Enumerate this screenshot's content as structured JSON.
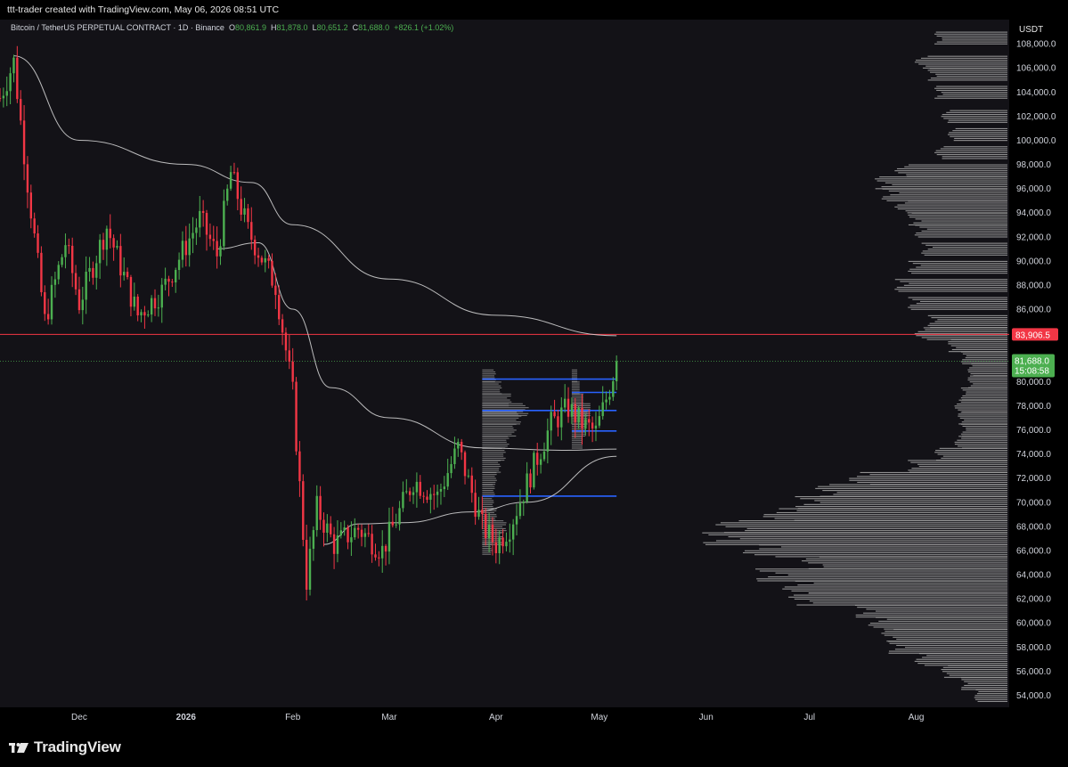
{
  "header": {
    "attribution": "ttt-trader created with TradingView.com, May 06, 2026 08:51 UTC"
  },
  "legend": {
    "symbol": "Bitcoin / TetherUS PERPETUAL CONTRACT · 1D · Binance",
    "open_label": "O",
    "open": "80,861.9",
    "high_label": "H",
    "high": "81,878.0",
    "low_label": "L",
    "low": "80,651.2",
    "close_label": "C",
    "close": "81,688.0",
    "change": "+826.1 (+1.02%)"
  },
  "footer": {
    "brand": "TradingView"
  },
  "colors": {
    "background": "#000000",
    "plot_bg": "#131217",
    "up": "#4caf50",
    "down": "#f23645",
    "resistance": "#f23645",
    "level_lines": "#2962ff",
    "ma": "#d9d9d9",
    "profile": "#9e9e9e"
  },
  "chart_data": {
    "type": "candlestick",
    "currency": "USDT",
    "y_range": [
      53000,
      110000
    ],
    "y_ticks": [
      "54,000.0",
      "56,000.0",
      "58,000.0",
      "60,000.0",
      "62,000.0",
      "64,000.0",
      "66,000.0",
      "68,000.0",
      "70,000.0",
      "72,000.0",
      "74,000.0",
      "76,000.0",
      "78,000.0",
      "80,000.0",
      "82,000.0",
      "84,000.0",
      "86,000.0",
      "88,000.0",
      "90,000.0",
      "92,000.0",
      "94,000.0",
      "96,000.0",
      "98,000.0",
      "100,000.0",
      "102,000.0",
      "104,000.0",
      "106,000.0",
      "108,000.0"
    ],
    "x_range": [
      "2025-11-08",
      "2026-08-28"
    ],
    "x_labels": [
      {
        "date": "2025-12-01",
        "label": "Dec",
        "bold": false
      },
      {
        "date": "2026-01-01",
        "label": "2026",
        "bold": true
      },
      {
        "date": "2026-02-01",
        "label": "Feb",
        "bold": false
      },
      {
        "date": "2026-03-01",
        "label": "Mar",
        "bold": false
      },
      {
        "date": "2026-04-01",
        "label": "Apr",
        "bold": false
      },
      {
        "date": "2026-05-01",
        "label": "May",
        "bold": false
      },
      {
        "date": "2026-06-01",
        "label": "Jun",
        "bold": false
      },
      {
        "date": "2026-07-01",
        "label": "Jul",
        "bold": false
      },
      {
        "date": "2026-08-01",
        "label": "Aug",
        "bold": false
      }
    ],
    "candle_anchors": [
      {
        "date": "2025-11-08",
        "price": 103500
      },
      {
        "date": "2025-11-12",
        "price": 106500
      },
      {
        "date": "2025-11-16",
        "price": 96500
      },
      {
        "date": "2025-11-21",
        "price": 85000
      },
      {
        "date": "2025-11-27",
        "price": 91500
      },
      {
        "date": "2025-12-01",
        "price": 86500
      },
      {
        "date": "2025-12-09",
        "price": 92800
      },
      {
        "date": "2025-12-18",
        "price": 85500
      },
      {
        "date": "2025-12-25",
        "price": 87500
      },
      {
        "date": "2026-01-05",
        "price": 93500
      },
      {
        "date": "2026-01-10",
        "price": 90500
      },
      {
        "date": "2026-01-14",
        "price": 97300
      },
      {
        "date": "2026-01-19",
        "price": 92500
      },
      {
        "date": "2026-01-27",
        "price": 88000
      },
      {
        "date": "2026-02-01",
        "price": 79000
      },
      {
        "date": "2026-02-05",
        "price": 63500
      },
      {
        "date": "2026-02-08",
        "price": 69500
      },
      {
        "date": "2026-02-13",
        "price": 66500
      },
      {
        "date": "2026-02-20",
        "price": 67800
      },
      {
        "date": "2026-02-27",
        "price": 66000
      },
      {
        "date": "2026-03-08",
        "price": 71800
      },
      {
        "date": "2026-03-15",
        "price": 70500
      },
      {
        "date": "2026-03-21",
        "price": 74500
      },
      {
        "date": "2026-03-28",
        "price": 68000
      },
      {
        "date": "2026-04-01",
        "price": 66500
      },
      {
        "date": "2026-04-05",
        "price": 68000
      },
      {
        "date": "2026-04-12",
        "price": 73000
      },
      {
        "date": "2026-04-17",
        "price": 76500
      },
      {
        "date": "2026-04-22",
        "price": 77800
      },
      {
        "date": "2026-04-26",
        "price": 76500
      },
      {
        "date": "2026-04-30",
        "price": 75800
      },
      {
        "date": "2026-05-04",
        "price": 79500
      },
      {
        "date": "2026-05-06",
        "price": 81688
      }
    ],
    "moving_averages": [
      {
        "points": [
          [
            "2025-11-12",
            107000
          ],
          [
            "2025-12-01",
            100000
          ],
          [
            "2026-01-01",
            98000
          ],
          [
            "2026-01-20",
            96500
          ],
          [
            "2026-02-01",
            93000
          ],
          [
            "2026-03-01",
            88500
          ],
          [
            "2026-04-01",
            85500
          ],
          [
            "2026-05-06",
            83800
          ]
        ]
      },
      {
        "points": [
          [
            "2026-01-10",
            91000
          ],
          [
            "2026-01-22",
            91500
          ],
          [
            "2026-02-01",
            86000
          ],
          [
            "2026-02-12",
            79500
          ],
          [
            "2026-03-01",
            77000
          ],
          [
            "2026-03-28",
            74500
          ],
          [
            "2026-04-20",
            74300
          ],
          [
            "2026-05-06",
            74400
          ]
        ]
      },
      {
        "points": [
          [
            "2026-02-10",
            66500
          ],
          [
            "2026-02-20",
            68200
          ],
          [
            "2026-03-05",
            68300
          ],
          [
            "2026-03-25",
            69200
          ],
          [
            "2026-04-10",
            70000
          ],
          [
            "2026-05-06",
            73800
          ]
        ]
      }
    ],
    "horizontal_levels": [
      {
        "price": 83906.5,
        "label": "83,906.5",
        "color": "#f23645",
        "full_width": true
      },
      {
        "price": 80200,
        "from": "2026-03-28",
        "to": "2026-05-06",
        "color": "#2962ff"
      },
      {
        "price": 79100,
        "from": "2026-04-23",
        "to": "2026-05-06",
        "color": "#2962ff"
      },
      {
        "price": 77600,
        "from": "2026-03-28",
        "to": "2026-05-06",
        "color": "#2962ff"
      },
      {
        "price": 75900,
        "from": "2026-04-23",
        "to": "2026-05-06",
        "color": "#2962ff"
      },
      {
        "price": 70500,
        "from": "2026-03-28",
        "to": "2026-05-06",
        "color": "#2962ff"
      }
    ],
    "last_price": {
      "value": "81,688.0",
      "countdown": "15:08:58",
      "price": 81688
    },
    "volume_profile_right": [
      [
        108500,
        0.22
      ],
      [
        106500,
        0.28
      ],
      [
        105500,
        0.24
      ],
      [
        104000,
        0.22
      ],
      [
        102000,
        0.2
      ],
      [
        100500,
        0.18
      ],
      [
        99000,
        0.22
      ],
      [
        97500,
        0.34
      ],
      [
        96500,
        0.4
      ],
      [
        95500,
        0.38
      ],
      [
        94500,
        0.34
      ],
      [
        93500,
        0.3
      ],
      [
        92500,
        0.28
      ],
      [
        91000,
        0.26
      ],
      [
        89500,
        0.3
      ],
      [
        88000,
        0.34
      ],
      [
        86500,
        0.3
      ],
      [
        85000,
        0.24
      ],
      [
        84000,
        0.28
      ],
      [
        83000,
        0.18
      ],
      [
        82000,
        0.14
      ],
      [
        81000,
        0.12
      ],
      [
        80000,
        0.12
      ],
      [
        79000,
        0.14
      ],
      [
        78000,
        0.16
      ],
      [
        77000,
        0.15
      ],
      [
        76000,
        0.14
      ],
      [
        75000,
        0.16
      ],
      [
        74000,
        0.22
      ],
      [
        73000,
        0.3
      ],
      [
        72000,
        0.48
      ],
      [
        71000,
        0.58
      ],
      [
        70000,
        0.64
      ],
      [
        69000,
        0.74
      ],
      [
        68000,
        0.88
      ],
      [
        67000,
        0.92
      ],
      [
        66000,
        0.8
      ],
      [
        65000,
        0.62
      ],
      [
        64000,
        0.76
      ],
      [
        63000,
        0.68
      ],
      [
        62000,
        0.66
      ],
      [
        61000,
        0.46
      ],
      [
        60000,
        0.42
      ],
      [
        59000,
        0.38
      ],
      [
        58000,
        0.36
      ],
      [
        57000,
        0.28
      ],
      [
        56000,
        0.2
      ],
      [
        55000,
        0.14
      ],
      [
        54000,
        0.1
      ]
    ],
    "volume_profile_local": [
      [
        80500,
        0.28
      ],
      [
        79500,
        0.4
      ],
      [
        78500,
        0.6
      ],
      [
        77700,
        0.95
      ],
      [
        77000,
        0.8
      ],
      [
        76000,
        0.7
      ],
      [
        75000,
        0.55
      ],
      [
        74000,
        0.48
      ],
      [
        73000,
        0.38
      ],
      [
        72000,
        0.3
      ],
      [
        71000,
        0.26
      ],
      [
        70000,
        0.24
      ],
      [
        69000,
        0.3
      ],
      [
        68000,
        0.5
      ],
      [
        67000,
        0.42
      ],
      [
        66200,
        0.2
      ]
    ]
  }
}
